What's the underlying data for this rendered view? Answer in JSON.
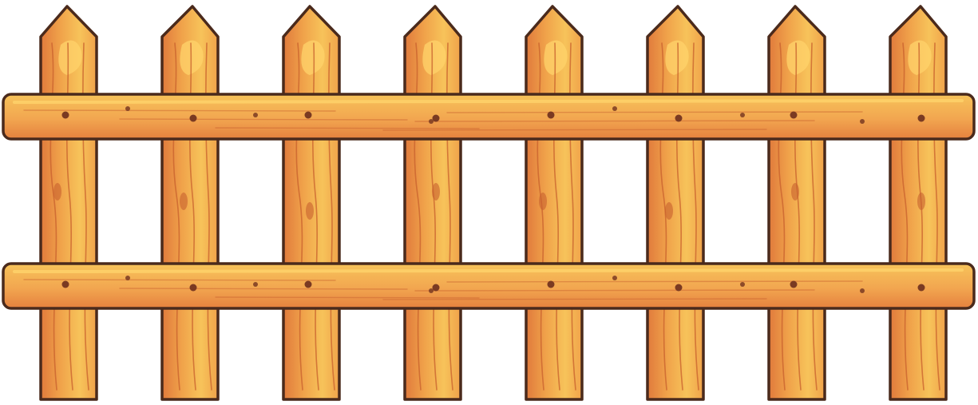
{
  "scene": {
    "subject": "wooden-picket-fence",
    "picket_count": 8,
    "rail_count": 2
  },
  "colors": {
    "background": "#ffffff",
    "outline": "#4a2a1c",
    "wood_base": "#f0a24a",
    "wood_light": "#f7c35a",
    "wood_shadow": "#e07a3c",
    "wood_highlight": "#ffd36b",
    "grain": "#c8602e",
    "nail": "#7a3a22",
    "rail_base": "#f2a650",
    "rail_shadow": "#e5813e"
  }
}
